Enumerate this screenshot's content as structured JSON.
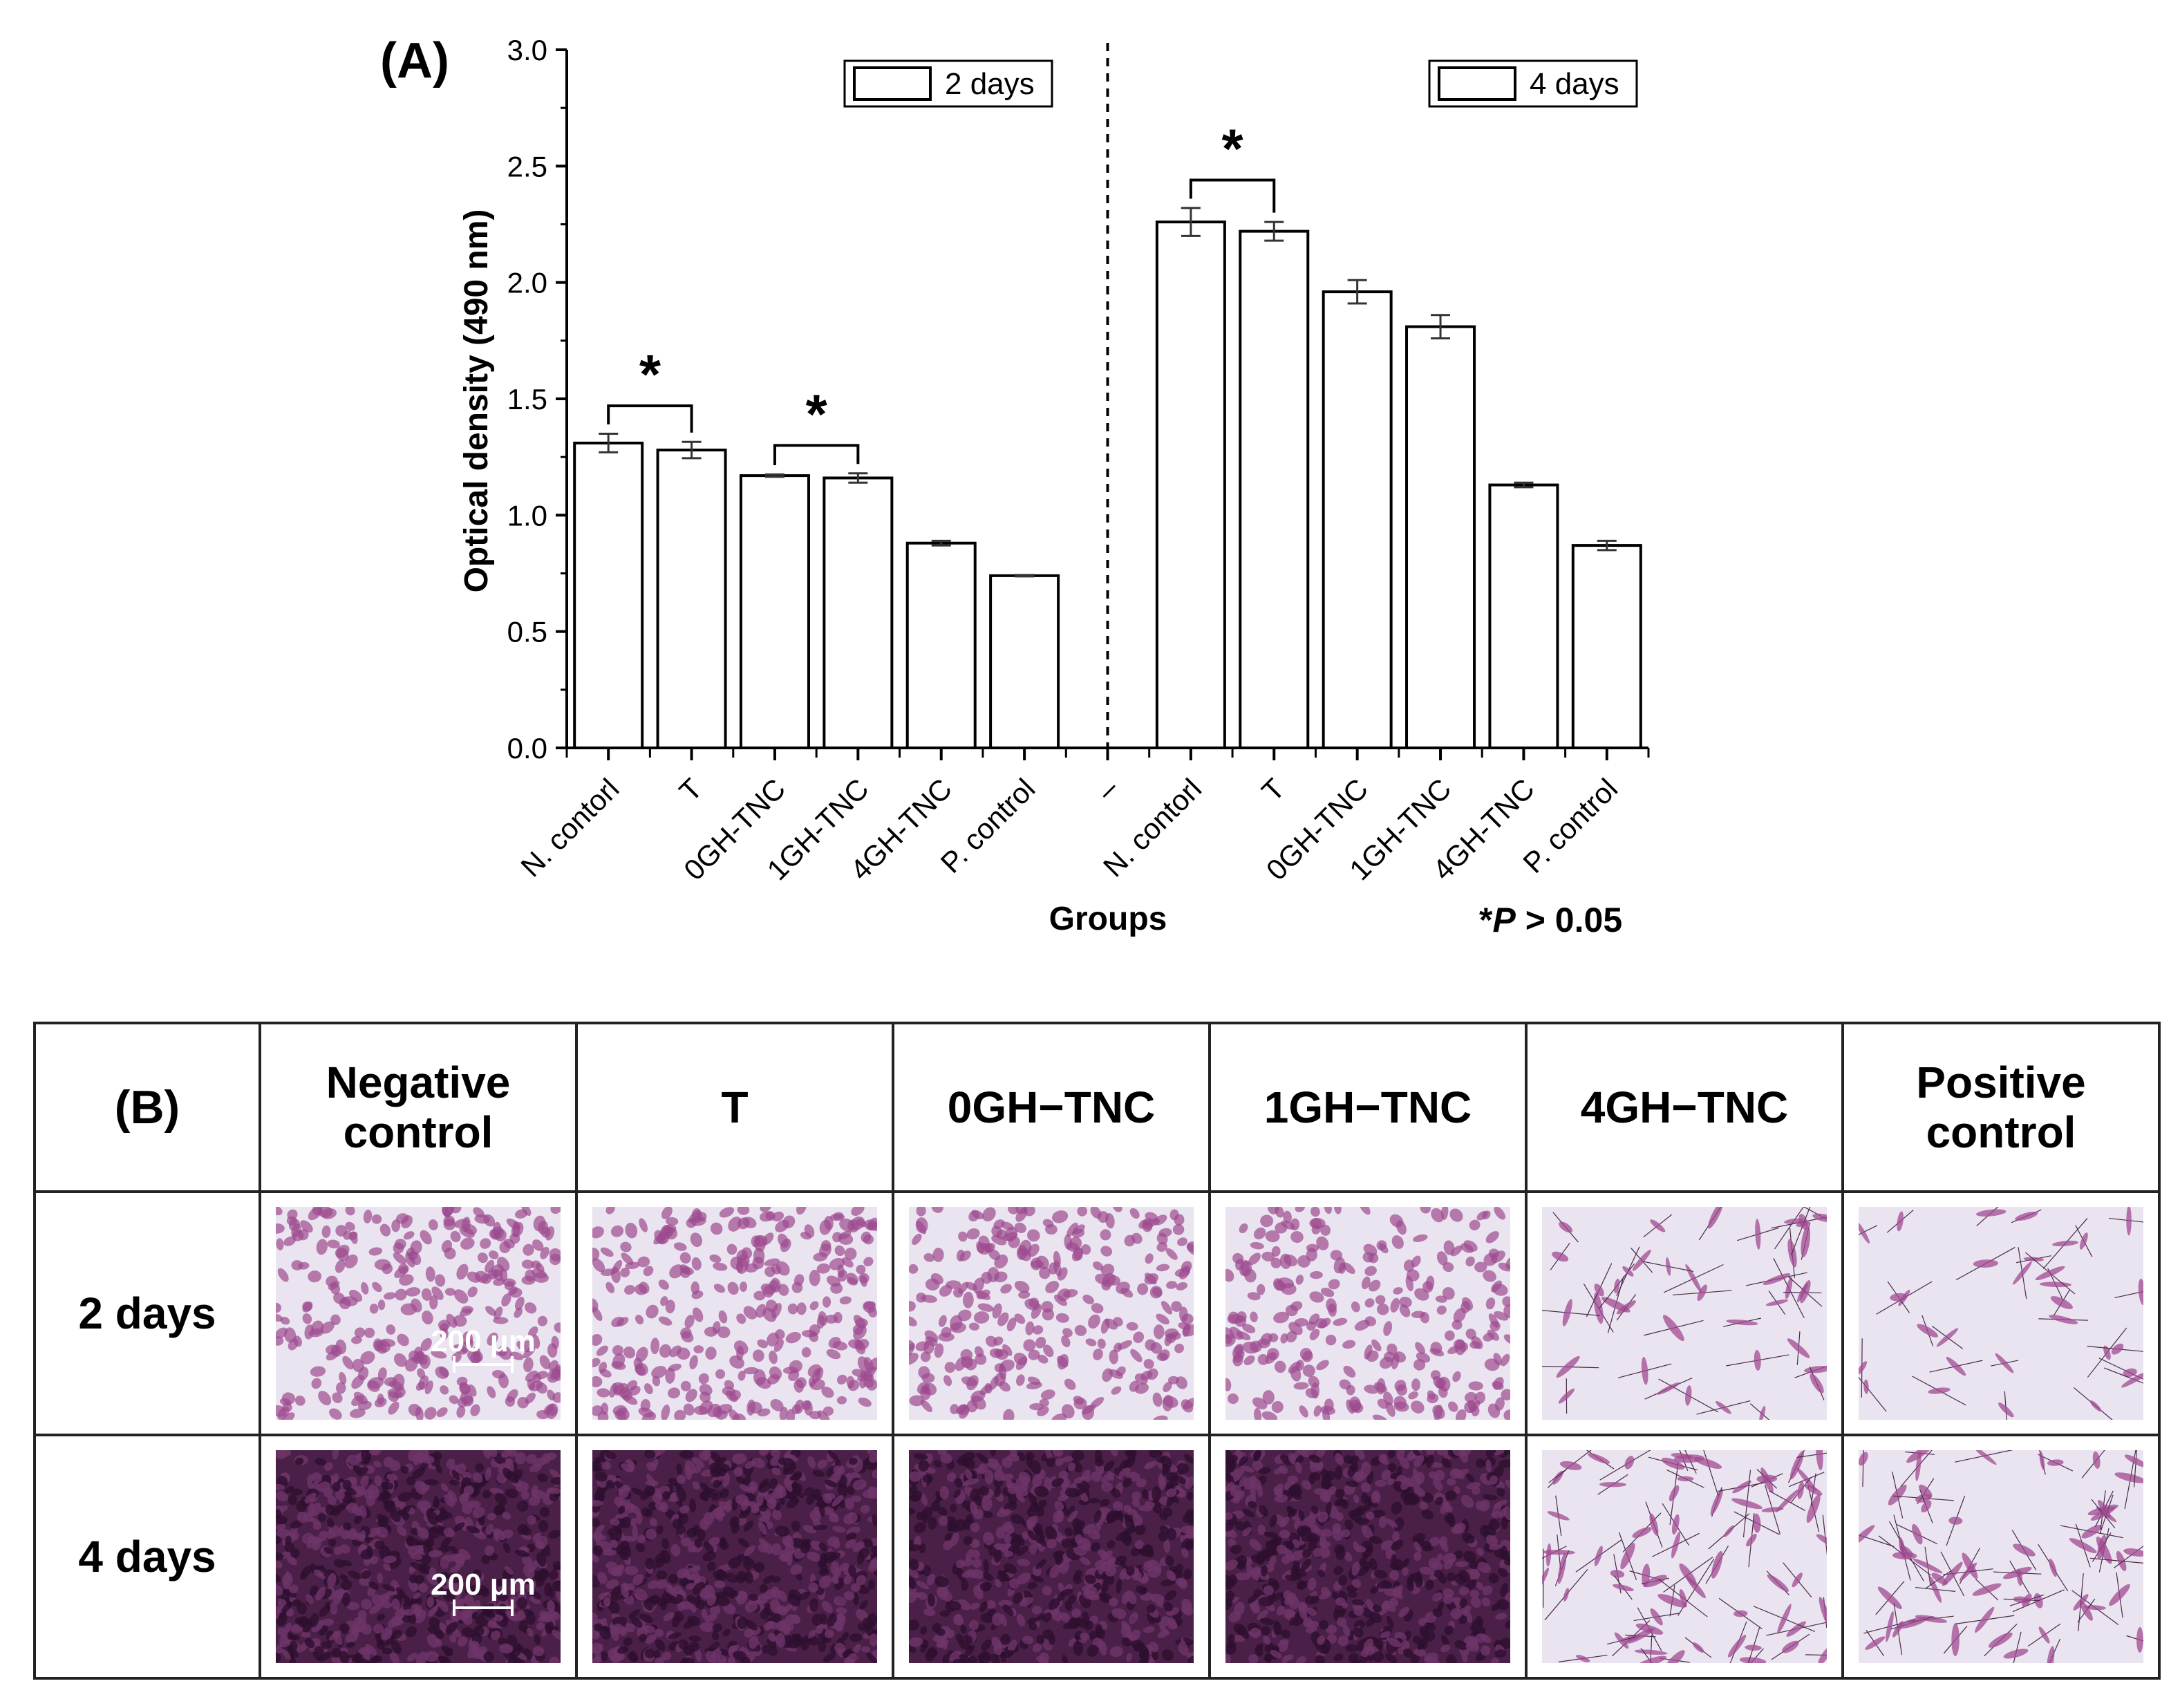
{
  "panel_a_label": "(A)",
  "panel_b_label": "(B)",
  "p_note": {
    "star": "*",
    "p": "P",
    "rest": " > 0.05"
  },
  "significance_mark": "*",
  "chart_data": {
    "type": "bar",
    "xlabel": "Groups",
    "ylabel": "Optical density (490 nm)",
    "ylim": [
      0,
      3.0
    ],
    "yticks": [
      "0.0",
      "0.5",
      "1.0",
      "1.5",
      "2.0",
      "2.5",
      "3.0"
    ],
    "categories": [
      "N. contorl",
      "T",
      "0GH-TNC",
      "1GH-TNC",
      "4GH-TNC",
      "P. control",
      "–",
      "N. contorl",
      "T",
      "0GH-TNC",
      "1GH-TNC",
      "4GH-TNC",
      "P. control"
    ],
    "series": [
      {
        "name": "2 days",
        "values": [
          1.31,
          1.28,
          1.17,
          1.16,
          0.88,
          0.74,
          null,
          null,
          null,
          null,
          null,
          null,
          null
        ],
        "errors": [
          0.04,
          0.035,
          0.005,
          0.02,
          0.01,
          0.003,
          null,
          null,
          null,
          null,
          null,
          null,
          null
        ]
      },
      {
        "name": "4 days",
        "values": [
          null,
          null,
          null,
          null,
          null,
          null,
          null,
          2.26,
          2.22,
          1.96,
          1.81,
          1.13,
          0.87
        ],
        "errors": [
          null,
          null,
          null,
          null,
          null,
          null,
          null,
          0.06,
          0.04,
          0.05,
          0.05,
          0.01,
          0.02
        ]
      }
    ],
    "significance_brackets": [
      {
        "between": [
          0,
          1
        ],
        "label": "*"
      },
      {
        "between": [
          2,
          3
        ],
        "label": "*"
      },
      {
        "between": [
          7,
          8
        ],
        "label": "*"
      }
    ],
    "legend": [
      "2 days",
      "4 days"
    ],
    "grid": false
  },
  "table": {
    "columns": [
      "Negative control",
      "T",
      "0GH−TNC",
      "1GH−TNC",
      "4GH−TNC",
      "Positive control"
    ],
    "rows": [
      "2 days",
      "4 days"
    ],
    "scale_label": "200 μm"
  }
}
